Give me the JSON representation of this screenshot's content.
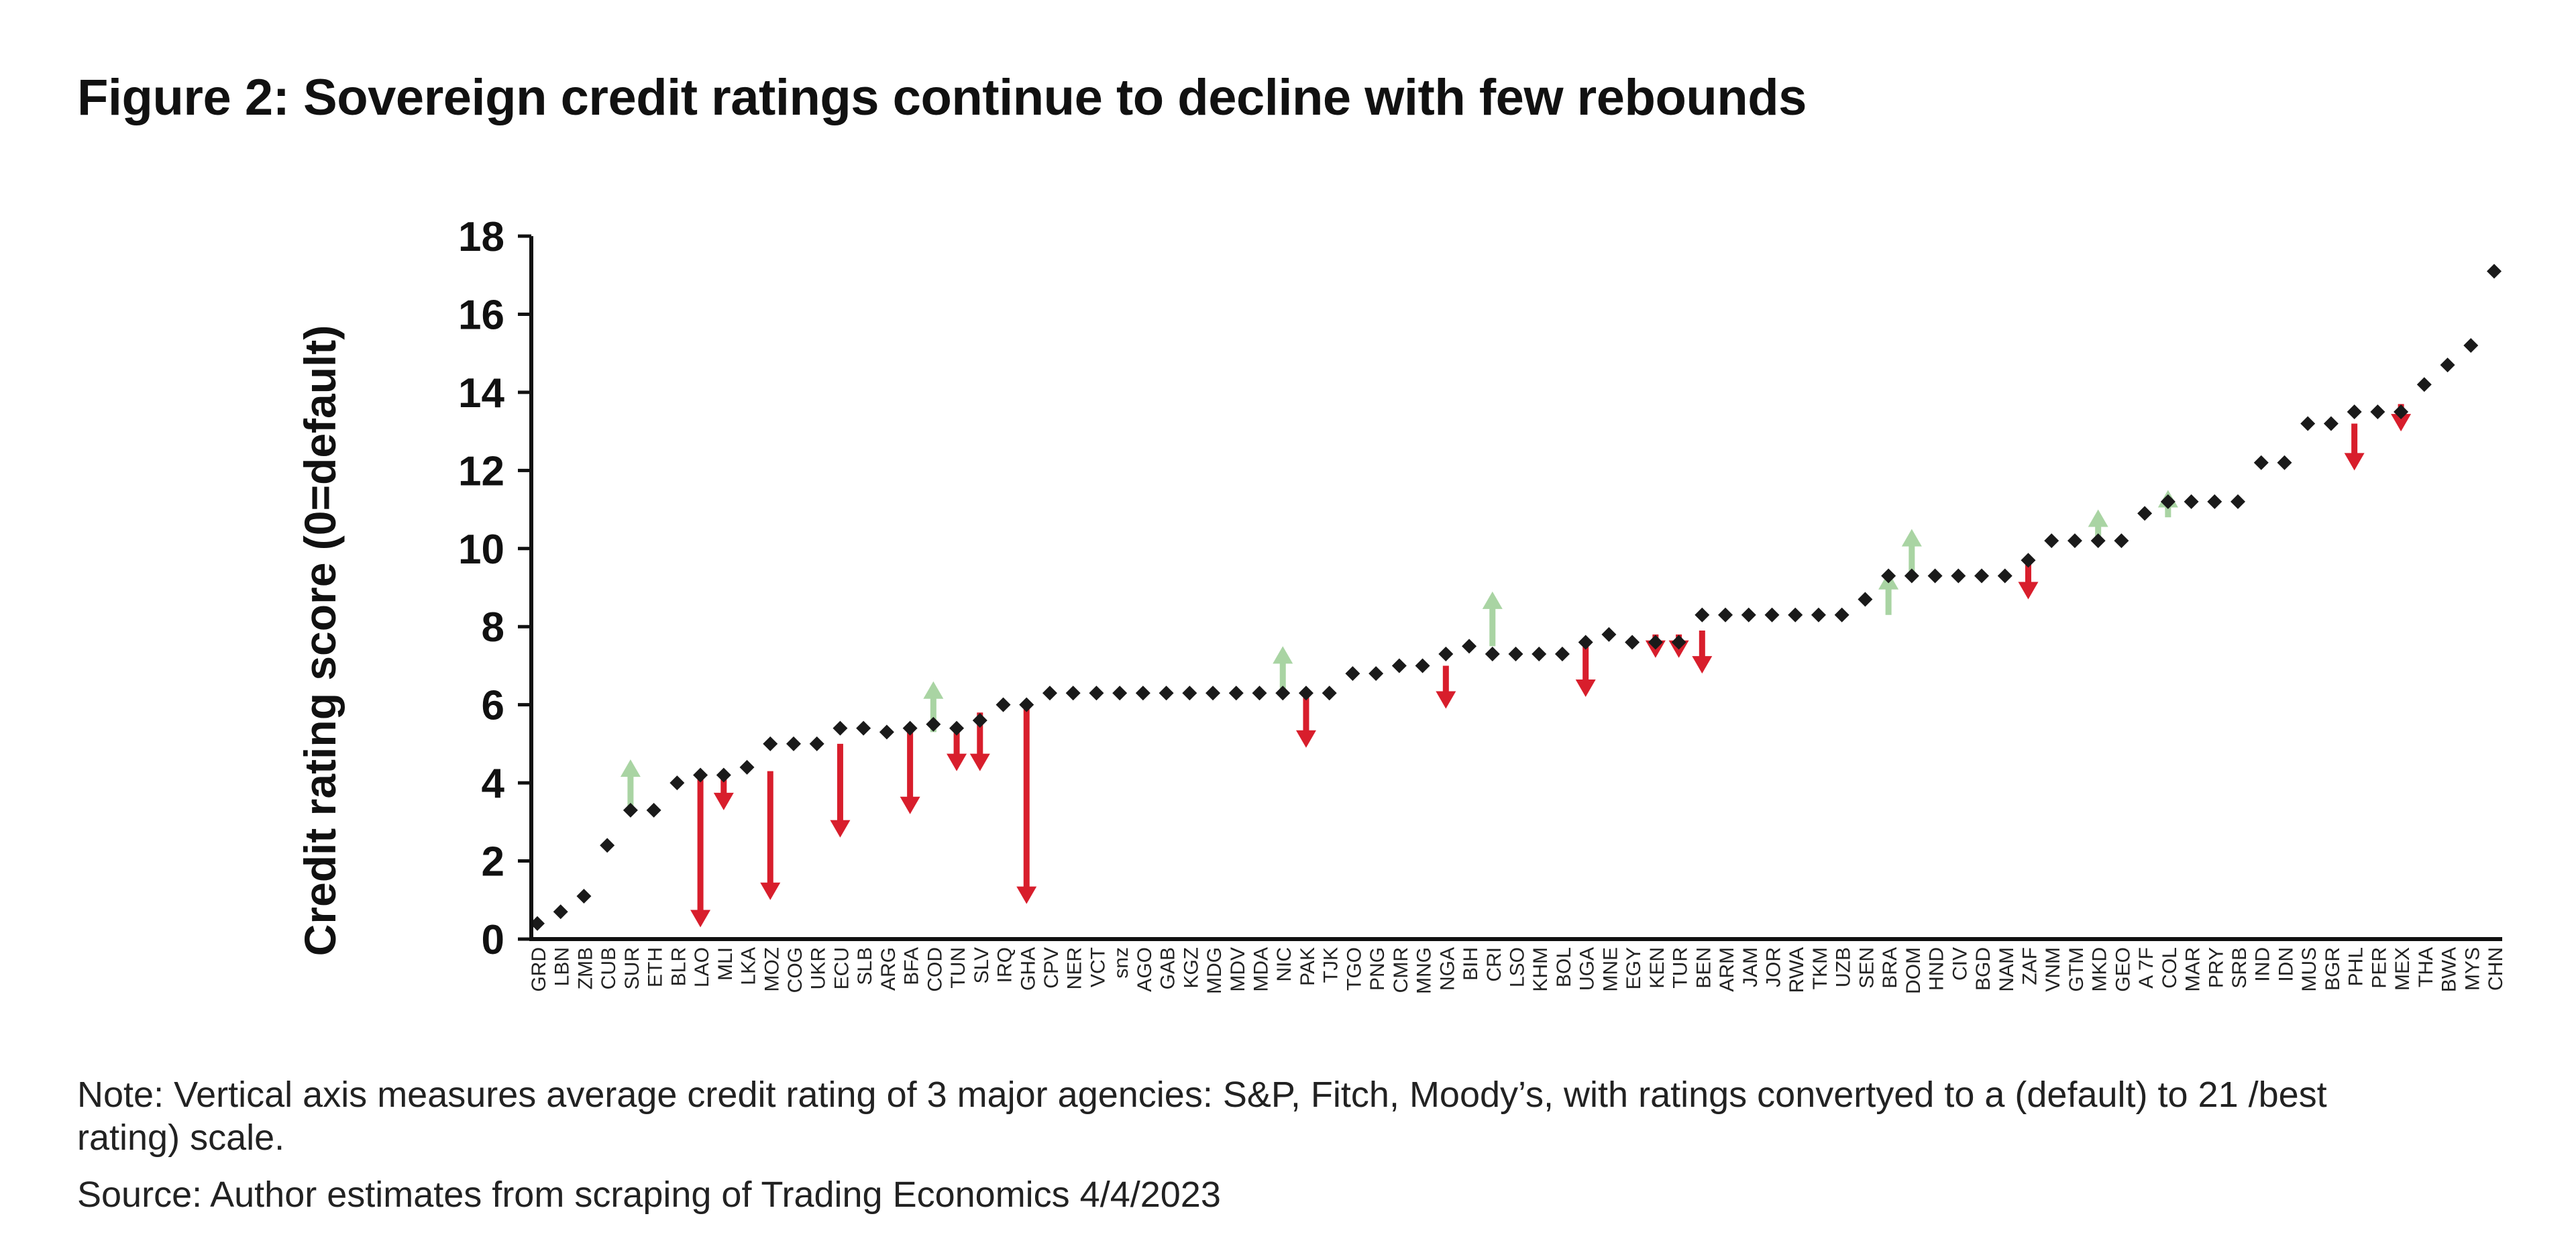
{
  "title": "Figure 2: Sovereign credit ratings continue to decline with few rebounds",
  "note": "Note: Vertical axis measures average credit rating of 3 major agencies: S&P, Fitch, Moody’s, with ratings convertyed to a (default) to 21 /best rating) scale.",
  "source": "Source: Author estimates from scraping of Trading Economics 4/4/2023",
  "colors": {
    "point": "#1a1a1a",
    "downgrade": "#d81e2c",
    "upgrade": "#a9d4a3",
    "axis": "#111111"
  },
  "chart_data": {
    "type": "scatter",
    "ylabel": "Credit rating score (0=default)",
    "xlabel": "",
    "ylim": [
      0,
      18
    ],
    "yticks": [
      0,
      2,
      4,
      6,
      8,
      10,
      12,
      14,
      16,
      18
    ],
    "grid": false,
    "categories": [
      "GRD",
      "LBN",
      "ZMB",
      "CUB",
      "SUR",
      "ETH",
      "BLR",
      "LAO",
      "MLI",
      "LKA",
      "MOZ",
      "COG",
      "UKR",
      "ECU",
      "SLB",
      "ARG",
      "BFA",
      "COD",
      "TUN",
      "SLV",
      "IRQ",
      "GHA",
      "CPV",
      "NER",
      "VCT",
      "snz",
      "AGO",
      "GAB",
      "KGZ",
      "MDG",
      "MDV",
      "MDA",
      "NIC",
      "PAK",
      "TJK",
      "TGO",
      "PNG",
      "CMR",
      "MNG",
      "NGA",
      "BIH",
      "CRI",
      "LSO",
      "KHM",
      "BOL",
      "UGA",
      "MNE",
      "EGY",
      "KEN",
      "TUR",
      "BEN",
      "ARM",
      "JAM",
      "JOR",
      "RWA",
      "TKM",
      "UZB",
      "SEN",
      "BRA",
      "DOM",
      "HND",
      "CIV",
      "BGD",
      "NAM",
      "ZAF",
      "VNM",
      "GTM",
      "MKD",
      "GEO",
      "A 7F",
      "COL",
      "MAR",
      "PRY",
      "SRB",
      "IND",
      "IDN",
      "MUS",
      "BGR",
      "PHL",
      "PER",
      "MEX",
      "THA",
      "BWA",
      "MYS",
      "CHN"
    ],
    "values": [
      0.4,
      0.7,
      1.1,
      2.4,
      3.3,
      3.3,
      4.0,
      4.2,
      4.2,
      4.4,
      5.0,
      5.0,
      5.0,
      5.4,
      5.4,
      5.3,
      5.4,
      5.5,
      5.4,
      5.6,
      6.0,
      6.0,
      6.3,
      6.3,
      6.3,
      6.3,
      6.3,
      6.3,
      6.3,
      6.3,
      6.3,
      6.3,
      6.3,
      6.3,
      6.3,
      6.8,
      6.8,
      7.0,
      7.0,
      7.3,
      7.5,
      7.3,
      7.3,
      7.3,
      7.3,
      7.6,
      7.8,
      7.6,
      7.6,
      7.6,
      8.3,
      8.3,
      8.3,
      8.3,
      8.3,
      8.3,
      8.3,
      8.7,
      9.3,
      9.3,
      9.3,
      9.3,
      9.3,
      9.3,
      9.7,
      10.2,
      10.2,
      10.2,
      10.2,
      10.9,
      11.2,
      11.2,
      11.2,
      11.2,
      12.2,
      12.2,
      13.2,
      13.2,
      13.5,
      13.5,
      13.5,
      14.2,
      14.7,
      15.2,
      17.1
    ],
    "changes": [
      {
        "category": "SUR",
        "from": 3.4,
        "to": 4.6,
        "direction": "up"
      },
      {
        "category": "LAO",
        "from": 4.3,
        "to": 0.3,
        "direction": "down"
      },
      {
        "category": "MLI",
        "from": 4.3,
        "to": 3.3,
        "direction": "down"
      },
      {
        "category": "MOZ",
        "from": 4.3,
        "to": 1.0,
        "direction": "down"
      },
      {
        "category": "ECU",
        "from": 5.0,
        "to": 2.6,
        "direction": "down"
      },
      {
        "category": "BFA",
        "from": 5.3,
        "to": 3.2,
        "direction": "down"
      },
      {
        "category": "COD",
        "from": 5.3,
        "to": 6.6,
        "direction": "up"
      },
      {
        "category": "TUN",
        "from": 5.3,
        "to": 4.3,
        "direction": "down"
      },
      {
        "category": "SLV",
        "from": 5.8,
        "to": 4.3,
        "direction": "down"
      },
      {
        "category": "GHA",
        "from": 6.0,
        "to": 0.9,
        "direction": "down"
      },
      {
        "category": "NIC",
        "from": 6.4,
        "to": 7.5,
        "direction": "up"
      },
      {
        "category": "PAK",
        "from": 6.3,
        "to": 4.9,
        "direction": "down"
      },
      {
        "category": "NGA",
        "from": 7.0,
        "to": 5.9,
        "direction": "down"
      },
      {
        "category": "CRI",
        "from": 7.5,
        "to": 8.9,
        "direction": "up"
      },
      {
        "category": "UGA",
        "from": 7.6,
        "to": 6.2,
        "direction": "down"
      },
      {
        "category": "KEN",
        "from": 7.8,
        "to": 7.2,
        "direction": "down"
      },
      {
        "category": "TUR",
        "from": 7.8,
        "to": 7.2,
        "direction": "down"
      },
      {
        "category": "BEN",
        "from": 7.9,
        "to": 6.8,
        "direction": "down"
      },
      {
        "category": "BRA",
        "from": 8.3,
        "to": 9.4,
        "direction": "up"
      },
      {
        "category": "DOM",
        "from": 9.4,
        "to": 10.5,
        "direction": "up"
      },
      {
        "category": "ZAF",
        "from": 9.7,
        "to": 8.7,
        "direction": "down"
      },
      {
        "category": "MKD",
        "from": 10.2,
        "to": 11.0,
        "direction": "up"
      },
      {
        "category": "COL",
        "from": 10.8,
        "to": 11.5,
        "direction": "up"
      },
      {
        "category": "PHL",
        "from": 13.2,
        "to": 12.0,
        "direction": "down"
      },
      {
        "category": "MEX",
        "from": 13.7,
        "to": 13.0,
        "direction": "down"
      }
    ]
  }
}
